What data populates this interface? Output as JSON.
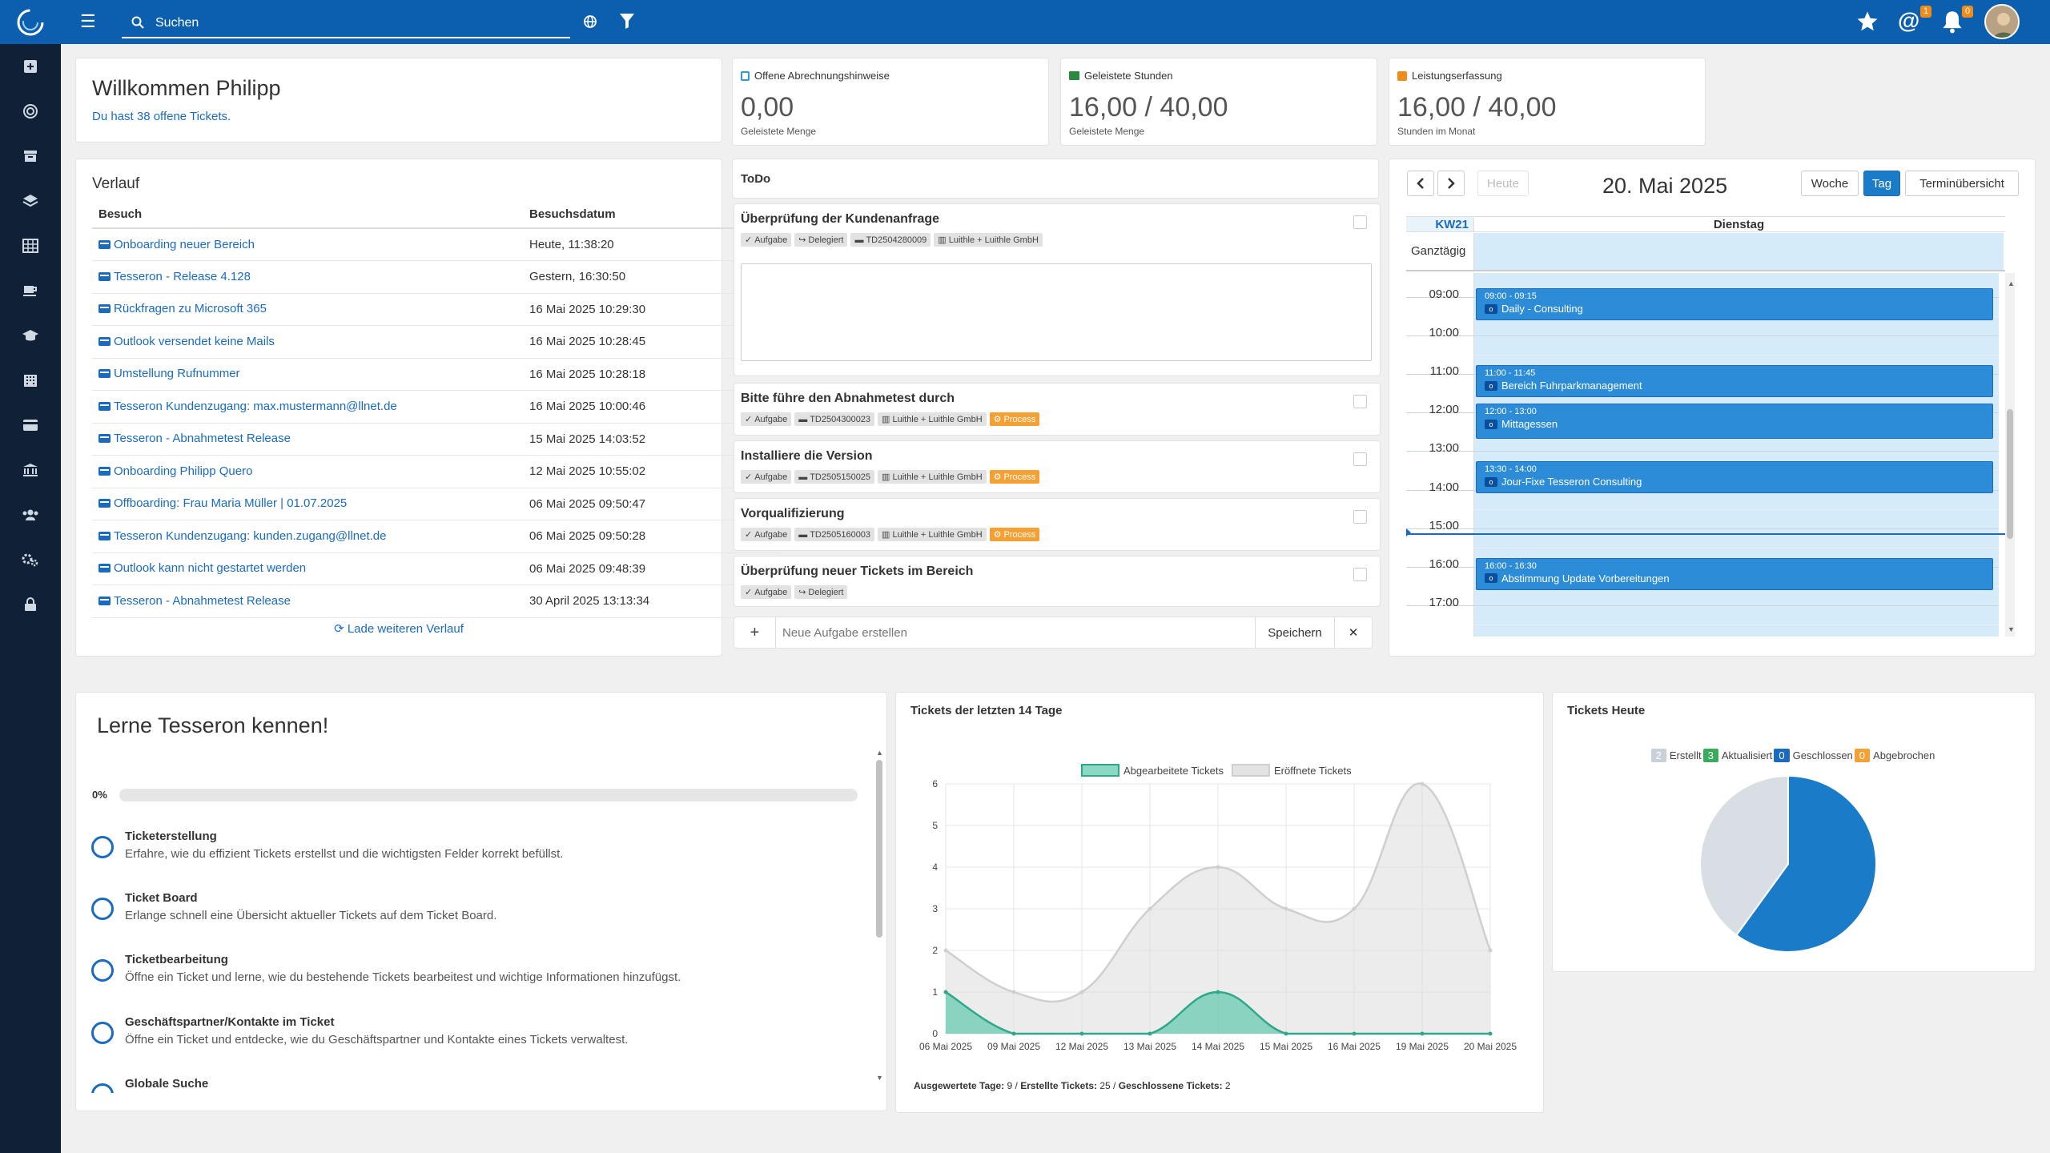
{
  "topbar": {
    "search_placeholder": "Suchen",
    "mention_count": "1",
    "notification_count": "0"
  },
  "sidebar": {
    "items": [
      "plus-square-icon",
      "target-icon",
      "archive-icon",
      "layers-icon",
      "table-icon",
      "coffee-icon",
      "graduation-cap-icon",
      "building-icon",
      "credit-card-icon",
      "bank-icon",
      "users-icon",
      "cogs-icon",
      "lock-icon"
    ]
  },
  "welcome": {
    "title": "Willkommen Philipp",
    "subtitle": "Du hast 38 offene Tickets."
  },
  "kpis": [
    {
      "title": "Offene Abrechnungshinweise",
      "value": "0,00",
      "sub": "Geleistete Menge",
      "icon": "billing-icon"
    },
    {
      "title": "Geleistete Stunden",
      "value": "16,00 / 40,00",
      "sub": "Geleistete Menge",
      "icon": "hours-icon"
    },
    {
      "title": "Leistungserfassung",
      "value": "16,00 / 40,00",
      "sub": "Stunden im Monat",
      "icon": "service-icon"
    }
  ],
  "verlauf": {
    "title": "Verlauf",
    "col_visit": "Besuch",
    "col_date": "Besuchsdatum",
    "rows": [
      {
        "name": "Onboarding neuer Bereich",
        "date": "Heute, 11:38:20"
      },
      {
        "name": " Tesseron - Release 4.128",
        "date": "Gestern, 16:30:50"
      },
      {
        "name": " Rückfragen zu Microsoft 365",
        "date": "16 Mai 2025 10:29:30"
      },
      {
        "name": " Outlook versendet keine Mails",
        "date": "16 Mai 2025 10:28:45"
      },
      {
        "name": "Umstellung Rufnummer",
        "date": "16 Mai 2025 10:28:18"
      },
      {
        "name": " Tesseron Kundenzugang: max.mustermann@llnet.de",
        "date": "16 Mai 2025 10:00:46"
      },
      {
        "name": " Tesseron - Abnahmetest Release",
        "date": "15 Mai 2025 14:03:52"
      },
      {
        "name": " Onboarding Philipp Quero",
        "date": "12 Mai 2025 10:55:02"
      },
      {
        "name": " Offboarding: Frau Maria Müller | 01.07.2025",
        "date": "06 Mai 2025 09:50:47"
      },
      {
        "name": " Tesseron Kundenzugang: kunden.zugang@llnet.de",
        "date": "06 Mai 2025 09:50:28"
      },
      {
        "name": "Outlook kann nicht gestartet werden",
        "date": "06 Mai 2025 09:48:39"
      },
      {
        "name": " Tesseron - Abnahmetest Release",
        "date": "30 April 2025 13:13:34"
      }
    ],
    "load_more": "Lade weiteren Verlauf"
  },
  "todo": {
    "title": "ToDo",
    "items": [
      {
        "title": "Überprüfung der Kundenanfrage",
        "tags": [
          "Aufgabe",
          "Delegiert",
          "TD2504280009",
          "Luithle + Luithle GmbH"
        ]
      },
      {
        "title": "Bitte führe den Abnahmetest durch",
        "tags": [
          "Aufgabe",
          "TD2504300023",
          "Luithle + Luithle GmbH"
        ],
        "process": "Process"
      },
      {
        "title": "Installiere die Version",
        "tags": [
          "Aufgabe",
          "TD2505150025",
          "Luithle + Luithle GmbH"
        ],
        "process": "Process"
      },
      {
        "title": "Vorqualifizierung",
        "tags": [
          "Aufgabe",
          "TD2505160003",
          "Luithle + Luithle GmbH"
        ],
        "process": "Process"
      },
      {
        "title": "Überprüfung neuer Tickets im Bereich",
        "tags": [
          "Aufgabe",
          "Delegiert"
        ]
      }
    ],
    "new_placeholder": "Neue Aufgabe erstellen",
    "save_label": "Speichern",
    "add_symbol": "+",
    "clear_symbol": "✕"
  },
  "calendar": {
    "today_label": "Heute",
    "date_title": "20. Mai 2025",
    "view_week": "Woche",
    "view_day": "Tag",
    "view_overview": "Terminübersicht",
    "week_label": "KW21",
    "day_label": "Dienstag",
    "allday_label": "Ganztägig",
    "hours": [
      "09:00",
      "10:00",
      "11:00",
      "12:00",
      "13:00",
      "14:00",
      "15:00",
      "16:00",
      "17:00"
    ],
    "events": [
      {
        "time": "09:00 - 09:15",
        "name": "Daily - Consulting"
      },
      {
        "time": "11:00 - 11:45",
        "name": "Bereich Fuhrparkmanagement"
      },
      {
        "time": "12:00 - 13:00",
        "name": "Mittagessen"
      },
      {
        "time": "13:30 - 14:00",
        "name": "Jour-Fixe Tesseron Consulting"
      },
      {
        "time": "16:00 - 16:30",
        "name": "Abstimmung Update Vorbereitungen"
      }
    ]
  },
  "learn": {
    "title": "Lerne Tesseron kennen!",
    "progress_label": "0%",
    "progress": 0,
    "items": [
      {
        "title": "Ticketerstellung",
        "desc": "Erfahre, wie du effizient Tickets erstellst und die wichtigsten Felder korrekt befüllst."
      },
      {
        "title": "Ticket Board",
        "desc": "Erlange schnell eine Übersicht aktueller Tickets auf dem Ticket Board."
      },
      {
        "title": "Ticketbearbeitung",
        "desc": "Öffne ein Ticket und lerne, wie du bestehende Tickets bearbeitest und wichtige Informationen hinzufügst."
      },
      {
        "title": "Geschäftspartner/Kontakte im Ticket",
        "desc": "Öffne ein Ticket und entdecke, wie du Geschäftspartner und Kontakte eines Tickets verwaltest."
      },
      {
        "title": "Globale Suche",
        "desc": ""
      }
    ]
  },
  "tickets14": {
    "title": "Tickets der letzten 14 Tage",
    "footer": {
      "label1": "Ausgewertete Tage:",
      "val1": "9",
      "label2": "Erstellte Tickets:",
      "val2": "25",
      "label3": "Geschlossene Tickets:",
      "val3": "2"
    }
  },
  "chart_data": [
    {
      "type": "area",
      "x": [
        "06 Mai 2025",
        "09 Mai 2025",
        "12 Mai 2025",
        "13 Mai 2025",
        "14 Mai 2025",
        "15 Mai 2025",
        "16 Mai 2025",
        "19 Mai 2025",
        "20 Mai 2025"
      ],
      "series": [
        {
          "name": "Abgearbeitete Tickets",
          "values": [
            1,
            0,
            0,
            0,
            1,
            0,
            0,
            0,
            0
          ],
          "color": "#3dbf9f"
        },
        {
          "name": "Eröffnete Tickets",
          "values": [
            2,
            1,
            1,
            3,
            4,
            3,
            3,
            6,
            2
          ],
          "color": "#d9d9d9"
        }
      ],
      "ylim": [
        0,
        6
      ],
      "yticks": [
        0,
        1,
        2,
        3,
        4,
        5,
        6
      ],
      "legend": "top-center",
      "grid": true
    },
    {
      "type": "pie",
      "title": "Tickets Heute",
      "categories": [
        "Erstellt",
        "Aktualisiert",
        "Geschlossen",
        "Abgebrochen"
      ],
      "counts": [
        2,
        3,
        0,
        0
      ],
      "badge_colors": [
        "#c8d0d8",
        "#3aaa5c",
        "#1a6bbf",
        "#f5a033"
      ],
      "slices": [
        {
          "label": "Aktualisiert",
          "value": 3,
          "color": "#1a7cc9"
        },
        {
          "label": "Erstellt",
          "value": 2,
          "color": "#d8dee4"
        }
      ]
    }
  ]
}
